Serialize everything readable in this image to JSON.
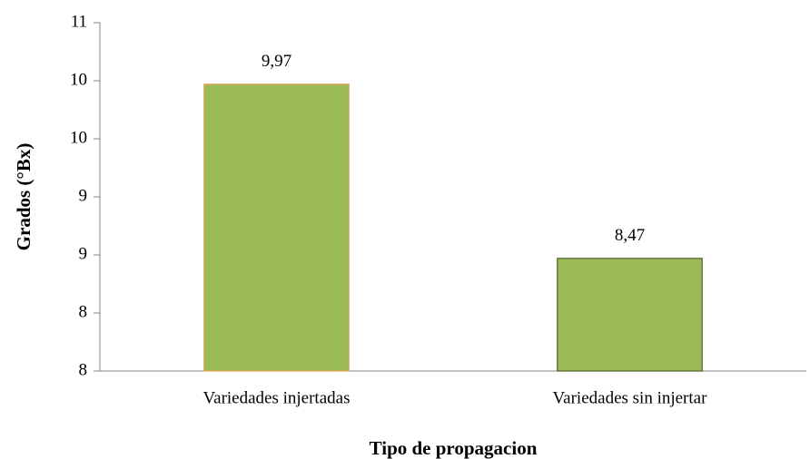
{
  "chart_data": {
    "type": "bar",
    "y_label": "Grados  (°Bx)",
    "x_label": "Tipo de propagacion",
    "categories": [
      "Variedades injertadas",
      "Variedades sin  injertar"
    ],
    "values": [
      9.97,
      8.47
    ],
    "value_labels": [
      "9,97",
      "8,47"
    ],
    "color": "#9bbb59",
    "ylim": [
      7.5,
      10.5
    ],
    "yticks": [
      {
        "value": 7.5,
        "label": "8"
      },
      8,
      {
        "value": 8.5,
        "label": "9"
      },
      9,
      {
        "value": 9.5,
        "label": "10"
      },
      10,
      {
        "value": 10.5,
        "label": "11"
      }
    ],
    "grid": false
  }
}
